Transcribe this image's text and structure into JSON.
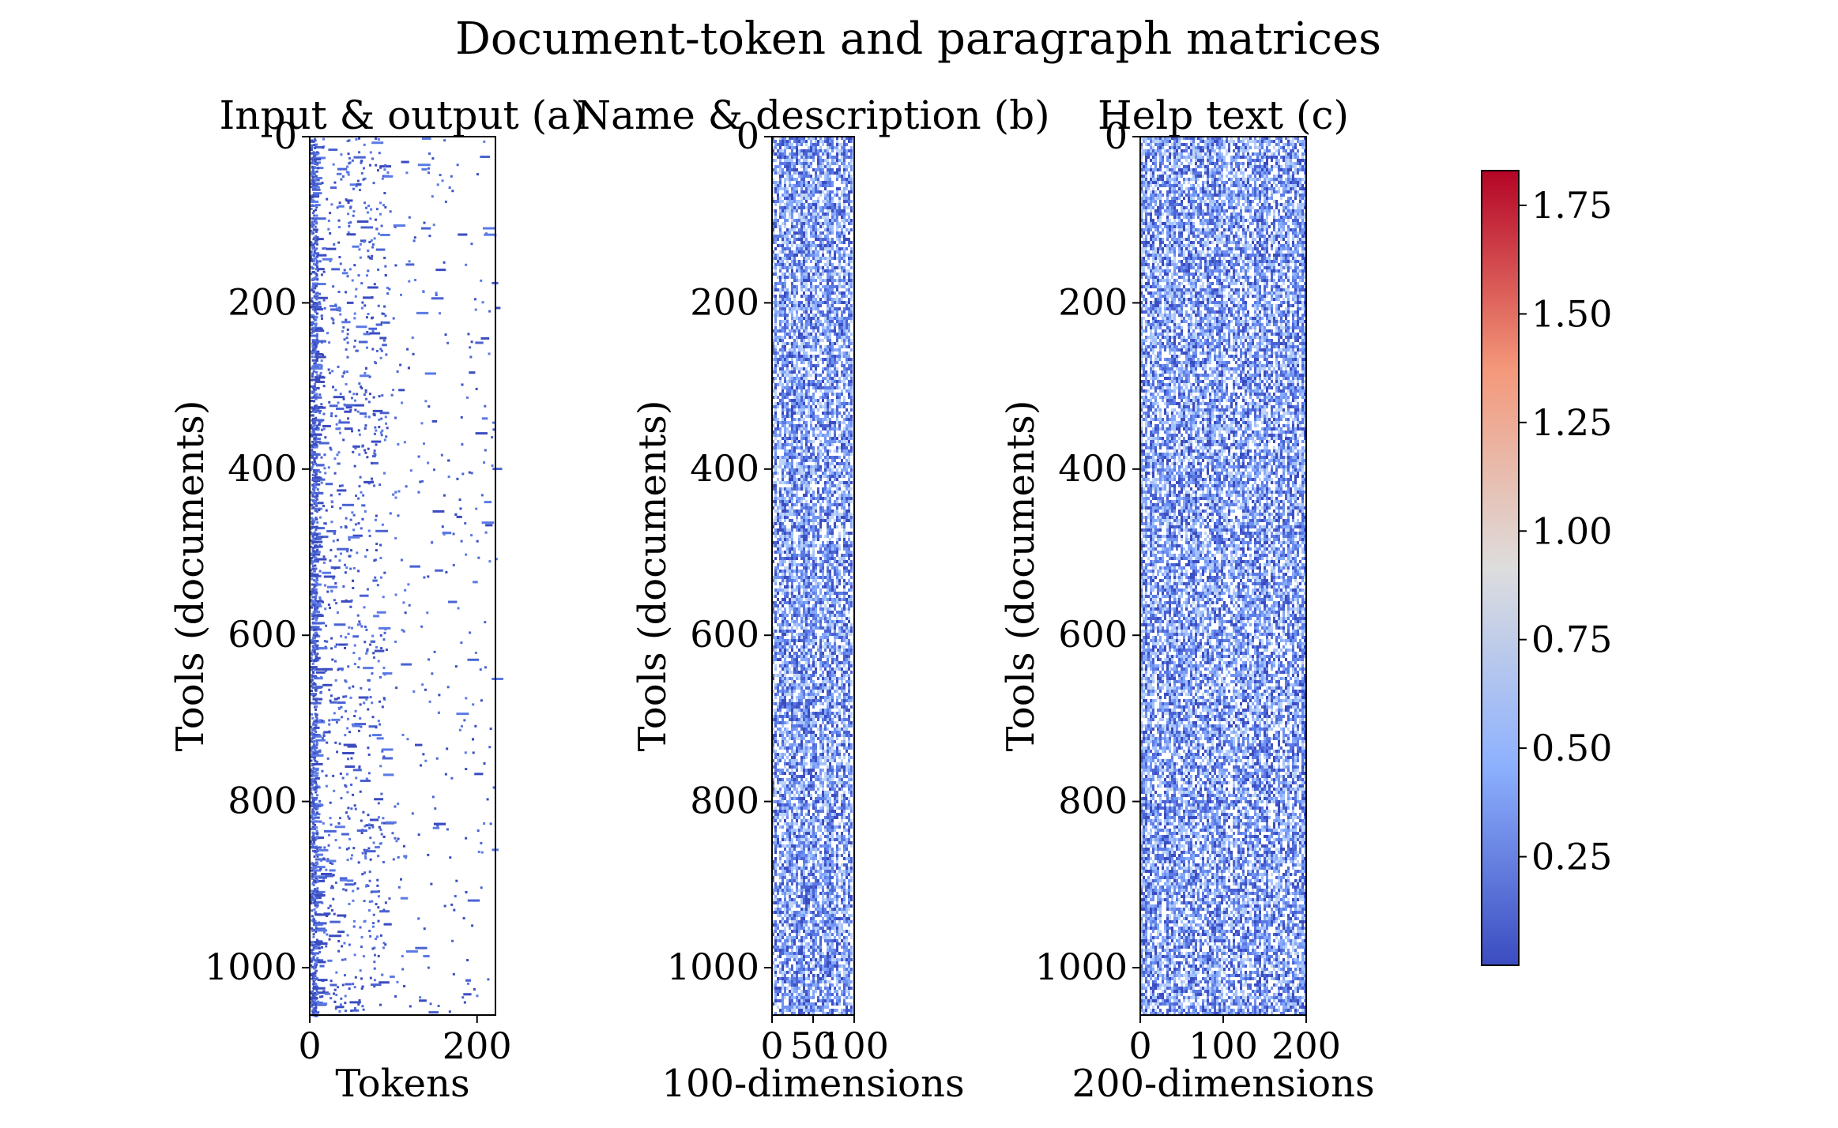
{
  "chart_data": {
    "title": "Document-token and paragraph matrices",
    "type": "heatmap",
    "panels": [
      {
        "id": "a",
        "title": "Input & output (a)",
        "xlabel": "Tokens",
        "ylabel": "Tools (documents)",
        "xlim": [
          0,
          222
        ],
        "ylim": [
          1057,
          0
        ],
        "xticks": [
          "0",
          "200"
        ],
        "xtick_values": [
          0,
          200
        ],
        "yticks": [
          "0",
          "200",
          "400",
          "600",
          "800",
          "1000"
        ],
        "ytick_values": [
          0,
          200,
          400,
          600,
          800,
          1000
        ],
        "pattern": "sparse"
      },
      {
        "id": "b",
        "title": "Name & description (b)",
        "xlabel": "100-dimensions",
        "ylabel": "Tools (documents)",
        "xlim": [
          0,
          100
        ],
        "ylim": [
          1057,
          0
        ],
        "xticks": [
          "0",
          "50",
          "100"
        ],
        "xtick_values": [
          0,
          50,
          100
        ],
        "yticks": [
          "0",
          "200",
          "400",
          "600",
          "800",
          "1000"
        ],
        "ytick_values": [
          0,
          200,
          400,
          600,
          800,
          1000
        ],
        "pattern": "dense"
      },
      {
        "id": "c",
        "title": "Help text (c)",
        "xlabel": "200-dimensions",
        "ylabel": "Tools (documents)",
        "xlim": [
          0,
          200
        ],
        "ylim": [
          1057,
          0
        ],
        "xticks": [
          "0",
          "100",
          "200"
        ],
        "xtick_values": [
          0,
          100,
          200
        ],
        "yticks": [
          "0",
          "200",
          "400",
          "600",
          "800",
          "1000"
        ],
        "ytick_values": [
          0,
          200,
          400,
          600,
          800,
          1000
        ],
        "pattern": "dense"
      }
    ],
    "colorbar": {
      "colormap": "coolwarm",
      "vmin": 0.0,
      "vmax": 1.83,
      "ticks": [
        "0.25",
        "0.50",
        "0.75",
        "1.00",
        "1.25",
        "1.50",
        "1.75"
      ],
      "tick_values": [
        0.25,
        0.5,
        0.75,
        1.0,
        1.25,
        1.5,
        1.75
      ],
      "colors": [
        "#3b4cc0",
        "#8db0fe",
        "#dddddd",
        "#f4987a",
        "#b40426"
      ]
    }
  }
}
